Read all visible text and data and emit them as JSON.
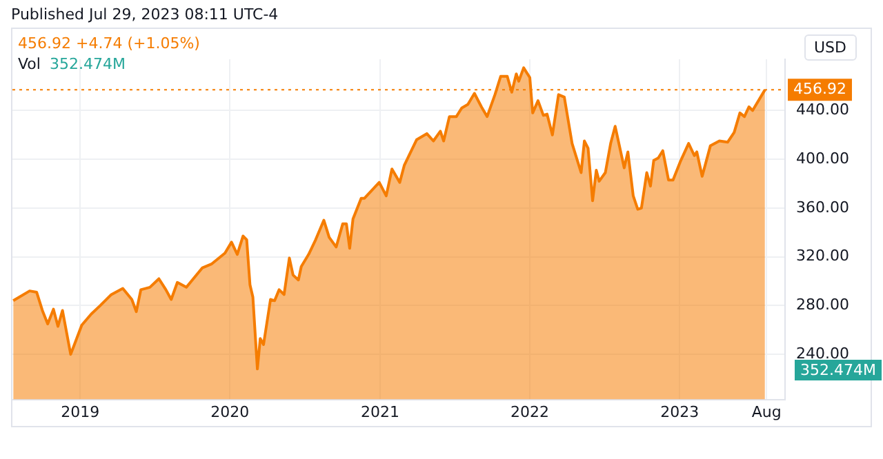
{
  "chart_data": {
    "type": "area",
    "annotations": [
      "Published Jul 29, 2023 08:11 UTC-4",
      "456.92 +4.74 (+1.05%)",
      "Vol",
      "352.474M",
      "USD",
      "352.474M"
    ],
    "x": [
      "2018-07-22",
      "2018-08-31",
      "2018-09-17",
      "2018-10-01",
      "2018-10-14",
      "2018-10-28",
      "2018-11-08",
      "2018-11-19",
      "2018-12-09",
      "2019-01-05",
      "2019-01-28",
      "2019-02-19",
      "2019-03-18",
      "2019-04-15",
      "2019-05-07",
      "2019-05-18",
      "2019-05-29",
      "2019-06-20",
      "2019-07-12",
      "2019-07-29",
      "2019-08-11",
      "2019-08-26",
      "2019-09-17",
      "2019-10-26",
      "2019-11-17",
      "2019-12-20",
      "2020-01-05",
      "2020-01-19",
      "2020-02-02",
      "2020-02-11",
      "2020-02-19",
      "2020-02-26",
      "2020-03-08",
      "2020-03-15",
      "2020-03-23",
      "2020-04-09",
      "2020-04-19",
      "2020-04-30",
      "2020-05-12",
      "2020-05-25",
      "2020-06-03",
      "2020-06-16",
      "2020-06-23",
      "2020-07-11",
      "2020-07-28",
      "2020-08-17",
      "2020-08-30",
      "2020-09-16",
      "2020-10-02",
      "2020-10-11",
      "2020-10-19",
      "2020-10-27",
      "2020-11-16",
      "2020-11-24",
      "2020-12-30",
      "2021-01-16",
      "2021-01-30",
      "2021-02-18",
      "2021-03-01",
      "2021-03-31",
      "2021-04-25",
      "2021-05-11",
      "2021-05-28",
      "2021-06-05",
      "2021-06-19",
      "2021-07-06",
      "2021-07-19",
      "2021-08-03",
      "2021-08-19",
      "2021-09-05",
      "2021-09-19",
      "2021-10-08",
      "2021-10-22",
      "2021-11-07",
      "2021-11-18",
      "2021-11-29",
      "2021-12-05",
      "2021-12-17",
      "2022-01-01",
      "2022-01-08",
      "2022-01-21",
      "2022-02-03",
      "2022-02-12",
      "2022-02-25",
      "2022-03-12",
      "2022-03-26",
      "2022-04-14",
      "2022-05-06",
      "2022-05-14",
      "2022-05-23",
      "2022-06-03",
      "2022-06-12",
      "2022-06-19",
      "2022-07-04",
      "2022-07-17",
      "2022-07-28",
      "2022-08-19",
      "2022-08-28",
      "2022-09-10",
      "2022-09-21",
      "2022-09-30",
      "2022-10-13",
      "2022-10-22",
      "2022-10-30",
      "2022-11-10",
      "2022-11-21",
      "2022-12-05",
      "2022-12-16",
      "2023-01-04",
      "2023-01-23",
      "2023-02-06",
      "2023-02-12",
      "2023-02-25",
      "2023-03-17",
      "2023-04-08",
      "2023-04-28",
      "2023-05-14",
      "2023-05-28",
      "2023-06-08",
      "2023-06-19",
      "2023-06-28",
      "2023-07-28"
    ],
    "series": [
      {
        "color": "#f57c00",
        "values": [
          284,
          292,
          291,
          276,
          265,
          277,
          263,
          276,
          240,
          264,
          273,
          280,
          289,
          294,
          285,
          275,
          293,
          295,
          302,
          293,
          285,
          299,
          295,
          311,
          314,
          323,
          332,
          322,
          337,
          334,
          297,
          287,
          228,
          253,
          248,
          285,
          284,
          293,
          289,
          319,
          305,
          301,
          312,
          322,
          334,
          350,
          336,
          328,
          347,
          347,
          327,
          351,
          368,
          368,
          381,
          370,
          392,
          381,
          395,
          416,
          421,
          415,
          423,
          415,
          435,
          435,
          442,
          445,
          454,
          443,
          435,
          453,
          468,
          468,
          455,
          470,
          464,
          475,
          467,
          438,
          448,
          436,
          437,
          420,
          453,
          451,
          413,
          389,
          415,
          409,
          366,
          391,
          382,
          389,
          413,
          427,
          393,
          406,
          370,
          359,
          360,
          389,
          378,
          399,
          401,
          407,
          383,
          383,
          399,
          413,
          403,
          406,
          386,
          411,
          415,
          414,
          422,
          438,
          435,
          443,
          440,
          456.92
        ]
      }
    ],
    "xlim": [
      "2018-07-20",
      "2023-09-15"
    ],
    "xticks": [
      {
        "value": "2019-01-01",
        "label": "2019"
      },
      {
        "value": "2020-01-01",
        "label": "2020"
      },
      {
        "value": "2021-01-01",
        "label": "2021"
      },
      {
        "value": "2022-01-01",
        "label": "2022"
      },
      {
        "value": "2023-01-01",
        "label": "2023"
      },
      {
        "value": "2023-08-01",
        "label": "Aug"
      }
    ],
    "ylim": [
      203,
      482
    ],
    "yticks": [
      {
        "value": 240,
        "label": "240.00"
      },
      {
        "value": 280,
        "label": "280.00"
      },
      {
        "value": 320,
        "label": "320.00"
      },
      {
        "value": 360,
        "label": "360.00"
      },
      {
        "value": 400,
        "label": "400.00"
      },
      {
        "value": 440,
        "label": "440.00"
      }
    ],
    "ref_lines": [
      {
        "axis": "y",
        "value": 456.92,
        "label": "456.92",
        "color": "#f57c00",
        "line_style": "dotted"
      }
    ],
    "grid": true,
    "legend": false,
    "marker": "none",
    "line_style": "solid"
  }
}
